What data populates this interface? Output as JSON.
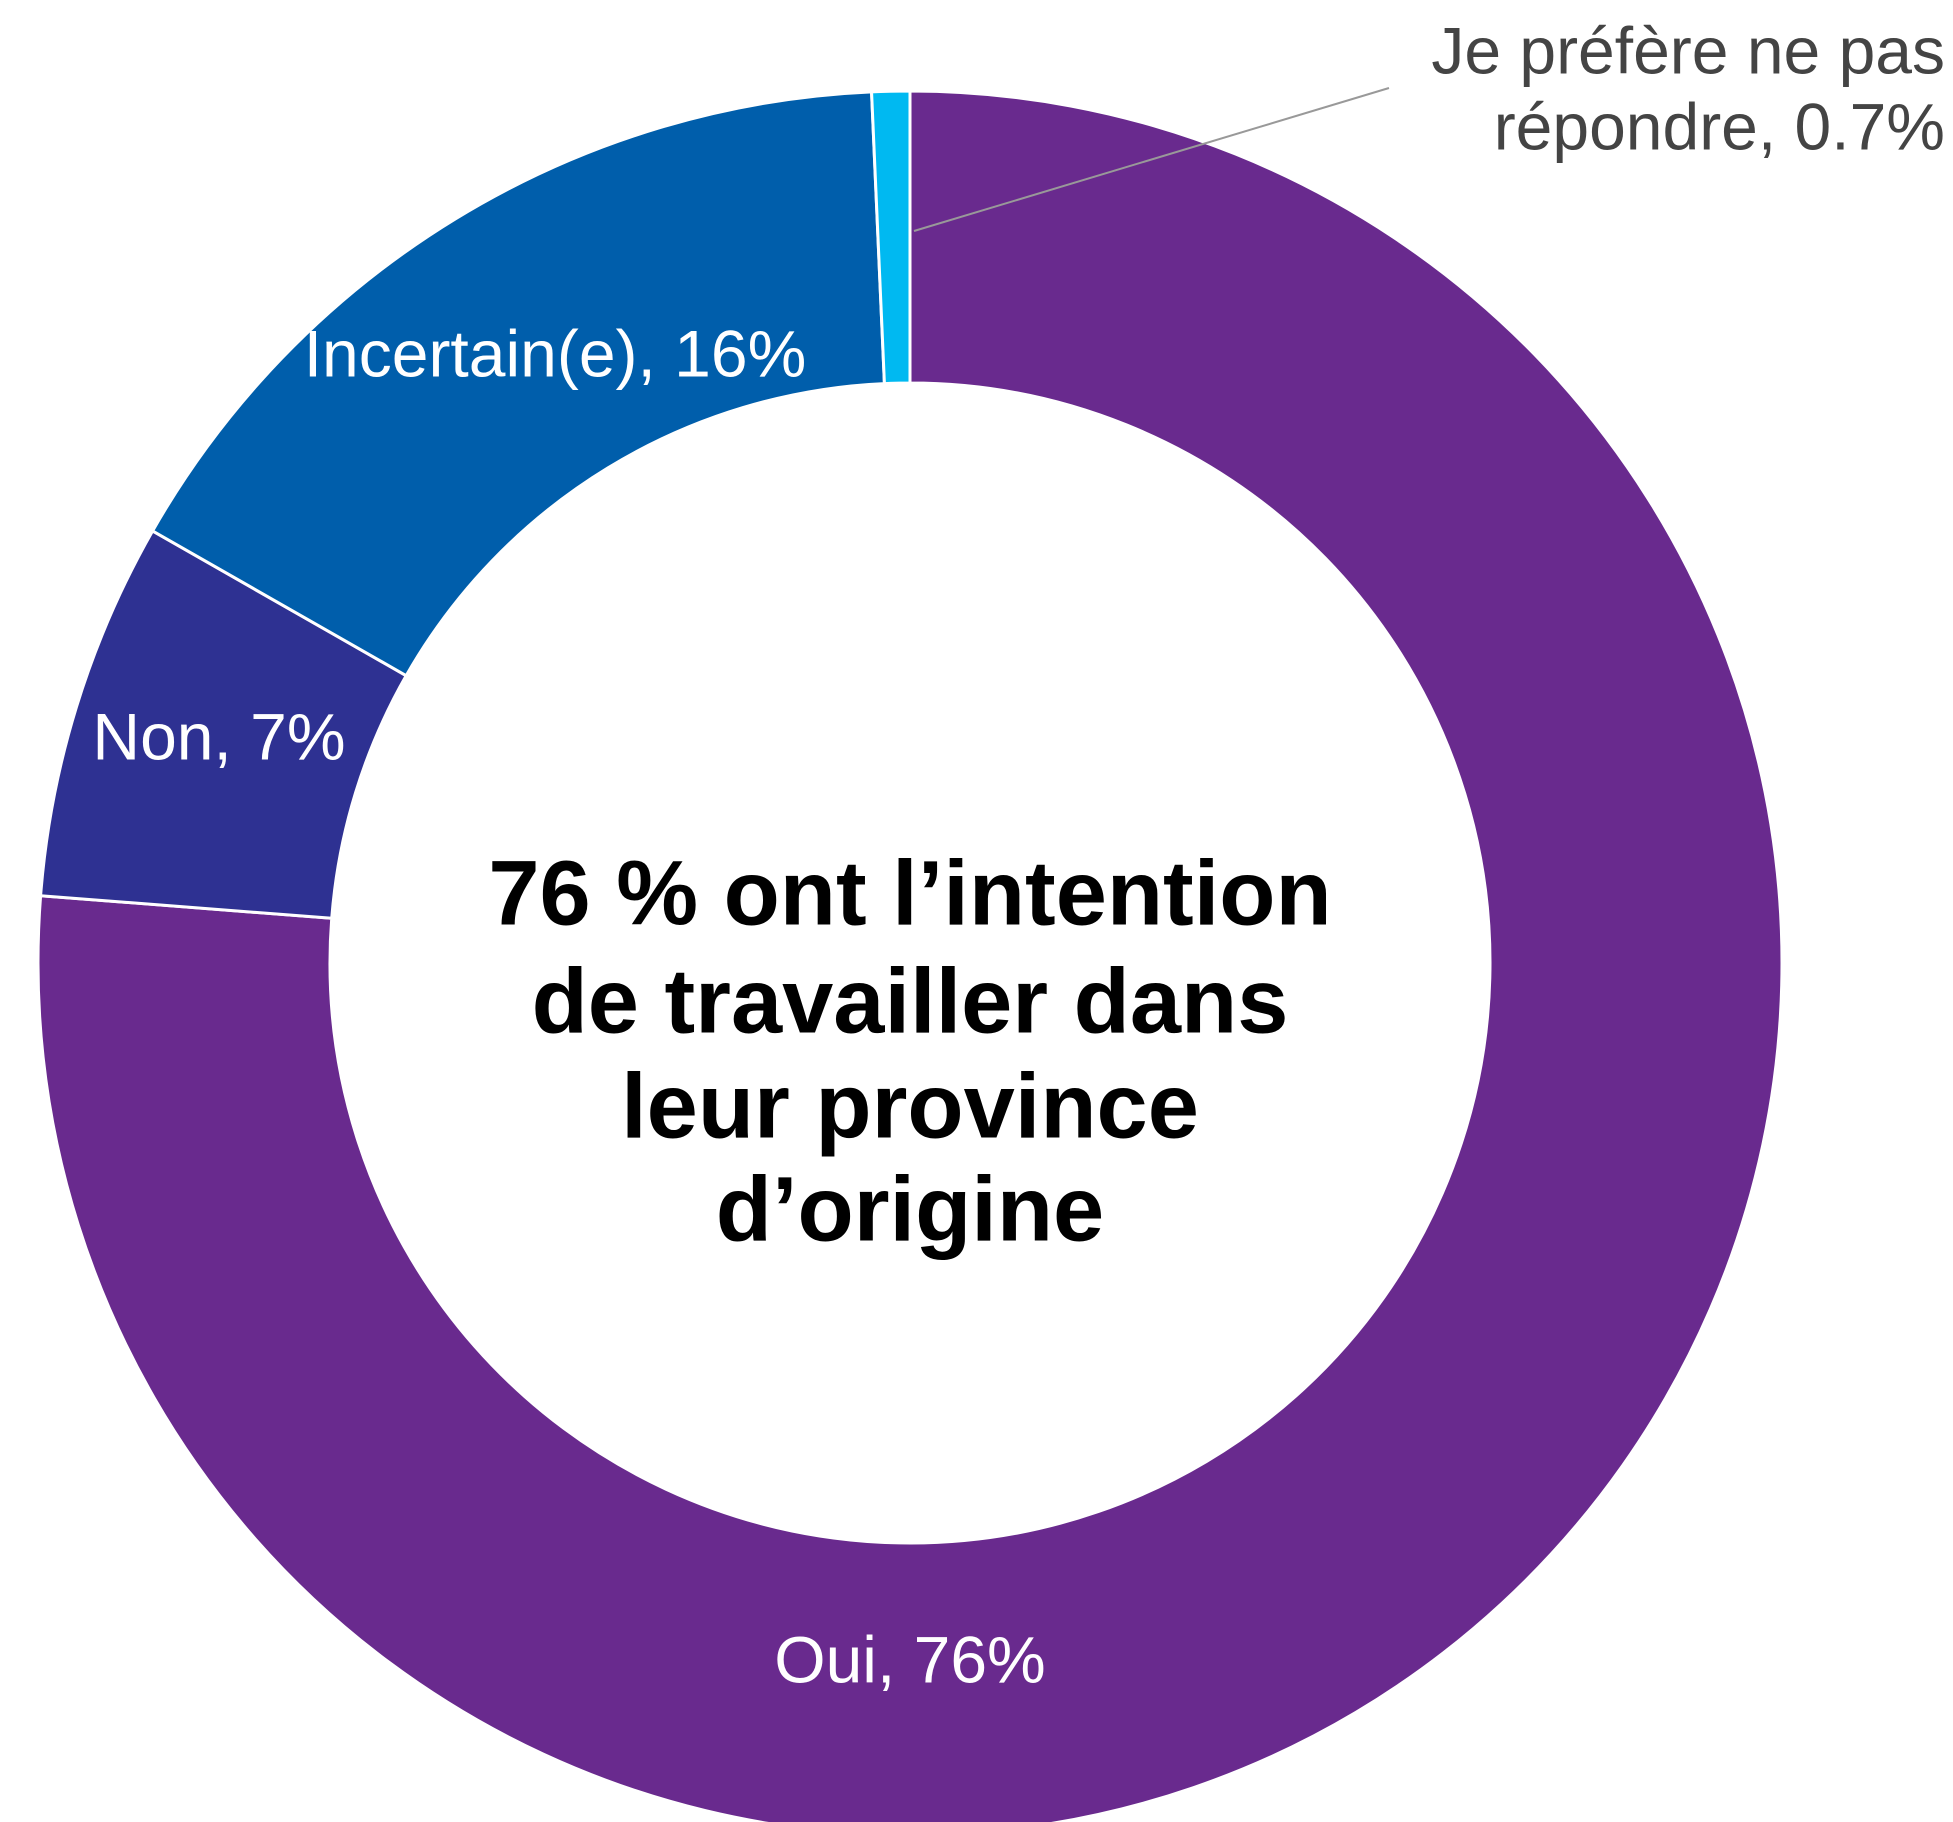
{
  "chart_data": {
    "type": "donut",
    "center_text": [
      "76 % ont l’intention",
      "de travailler dans",
      "leur province",
      "d’origine"
    ],
    "values": [
      76,
      7,
      16,
      0.7
    ],
    "value_labels": [
      [
        "Oui, 76%"
      ],
      [
        "Non, 7%"
      ],
      [
        "Incertain(e), 16%"
      ],
      [
        "Je préfère ne pas",
        "répondre, 0.7%"
      ]
    ],
    "colors": [
      "#692a8e",
      "#2e3192",
      "#005eab",
      "#00b9f1"
    ]
  }
}
